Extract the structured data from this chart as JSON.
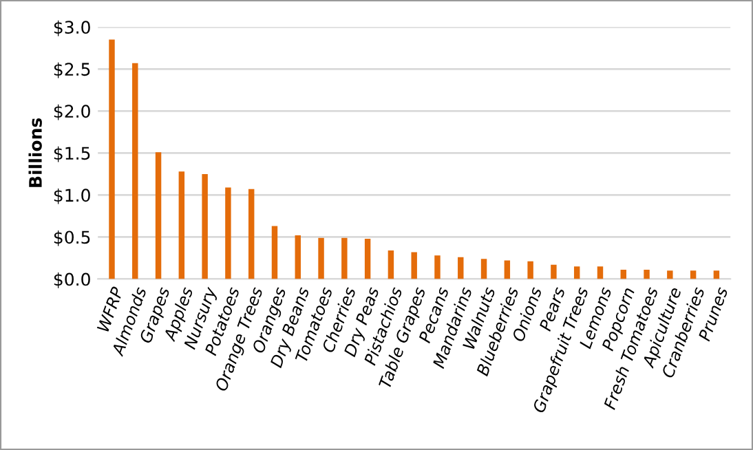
{
  "chart_data": {
    "type": "bar",
    "ylabel": "Billions",
    "categories": [
      "WFRP",
      "Almonds",
      "Grapes",
      "Apples",
      "Nursury",
      "Potatoes",
      "Orange Trees",
      "Oranges",
      "Dry Beans",
      "Tomatoes",
      "Cherries",
      "Dry Peas",
      "Pistachios",
      "Table Grapes",
      "Pecans",
      "Mandarins",
      "Walnuts",
      "Blueberries",
      "Onions",
      "Pears",
      "Grapefruit Trees",
      "Lemons",
      "Popcorn",
      "Fresh Tomatoes",
      "Apiculture",
      "Cranberries",
      "Prunes"
    ],
    "values": [
      2.85,
      2.57,
      1.51,
      1.28,
      1.25,
      1.09,
      1.07,
      0.63,
      0.52,
      0.49,
      0.49,
      0.48,
      0.34,
      0.32,
      0.28,
      0.26,
      0.24,
      0.22,
      0.21,
      0.17,
      0.15,
      0.15,
      0.11,
      0.11,
      0.1,
      0.1,
      0.1
    ],
    "color": "#e46c0a",
    "ylim": [
      0,
      3.0
    ],
    "yticks": [
      {
        "value": 0,
        "label": "$0.0"
      },
      {
        "value": 0.5,
        "label": "$0.5"
      },
      {
        "value": 1.0,
        "label": "$1.0"
      },
      {
        "value": 1.5,
        "label": "$1.5"
      },
      {
        "value": 2.0,
        "label": "$2.0"
      },
      {
        "value": 2.5,
        "label": "$2.5"
      },
      {
        "value": 3.0,
        "label": "$3.0"
      }
    ],
    "grid": "y"
  }
}
